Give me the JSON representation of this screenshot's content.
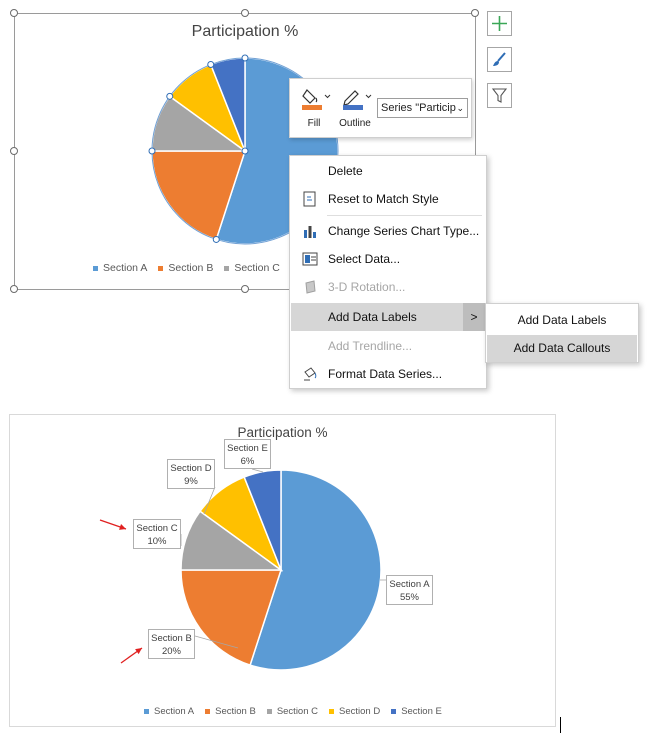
{
  "chart_data": [
    {
      "type": "pie",
      "title": "Participation %",
      "categories": [
        "Section A",
        "Section B",
        "Section C",
        "Section D",
        "Section E"
      ],
      "values": [
        55,
        20,
        10,
        9,
        6
      ],
      "colors": [
        "#5b9bd5",
        "#ed7d31",
        "#a5a5a5",
        "#ffc000",
        "#4472c4"
      ],
      "legend": "bottom",
      "selected": true
    },
    {
      "type": "pie",
      "title": "Participation %",
      "categories": [
        "Section A",
        "Section B",
        "Section C",
        "Section D",
        "Section E"
      ],
      "values": [
        55,
        20,
        10,
        9,
        6
      ],
      "colors": [
        "#5b9bd5",
        "#ed7d31",
        "#a5a5a5",
        "#ffc000",
        "#4472c4"
      ],
      "data_labels": [
        "55%",
        "20%",
        "10%",
        "9%",
        "6%"
      ],
      "legend": "bottom"
    }
  ],
  "top_chart": {
    "title": "Participation %",
    "legend": [
      "Section A",
      "Section B",
      "Section C"
    ]
  },
  "side_buttons": {
    "icons": [
      "plus-icon",
      "brush-icon",
      "filter-icon"
    ]
  },
  "mini_toolbar": {
    "fill_label": "Fill",
    "outline_label": "Outline",
    "series_value": "Series \"Particip",
    "fill_color": "#ed7d31",
    "outline_color": "#4472c4"
  },
  "context_menu": {
    "items": [
      {
        "label": "Delete",
        "icon": "none",
        "enabled": true
      },
      {
        "label": "Reset to Match Style",
        "icon": "reset-style-icon",
        "enabled": true
      },
      {
        "label": "Change Series Chart Type...",
        "icon": "chart-type-icon",
        "enabled": true
      },
      {
        "label": "Select Data...",
        "icon": "select-data-icon",
        "enabled": true
      },
      {
        "label": "3-D Rotation...",
        "icon": "rotation-3d-icon",
        "enabled": false
      },
      {
        "label": "Add Data Labels",
        "icon": "none",
        "enabled": true,
        "highlighted": true,
        "has_submenu": true
      },
      {
        "label": "Add Trendline...",
        "icon": "none",
        "enabled": false
      },
      {
        "label": "Format Data Series...",
        "icon": "format-series-icon",
        "enabled": true
      }
    ],
    "submenu_arrow": ">"
  },
  "sub_menu": {
    "items": [
      {
        "label": "Add Data Labels",
        "highlighted": false
      },
      {
        "label": "Add Data Callouts",
        "highlighted": true
      }
    ]
  },
  "bottom_chart": {
    "title": "Participation %",
    "callouts": [
      {
        "name": "Section A",
        "value": "55%"
      },
      {
        "name": "Section B",
        "value": "20%"
      },
      {
        "name": "Section C",
        "value": "10%"
      },
      {
        "name": "Section D",
        "value": "9%"
      },
      {
        "name": "Section E",
        "value": "6%"
      }
    ],
    "legend": [
      "Section A",
      "Section B",
      "Section C",
      "Section D",
      "Section E"
    ],
    "arrow_color": "#e02020"
  }
}
